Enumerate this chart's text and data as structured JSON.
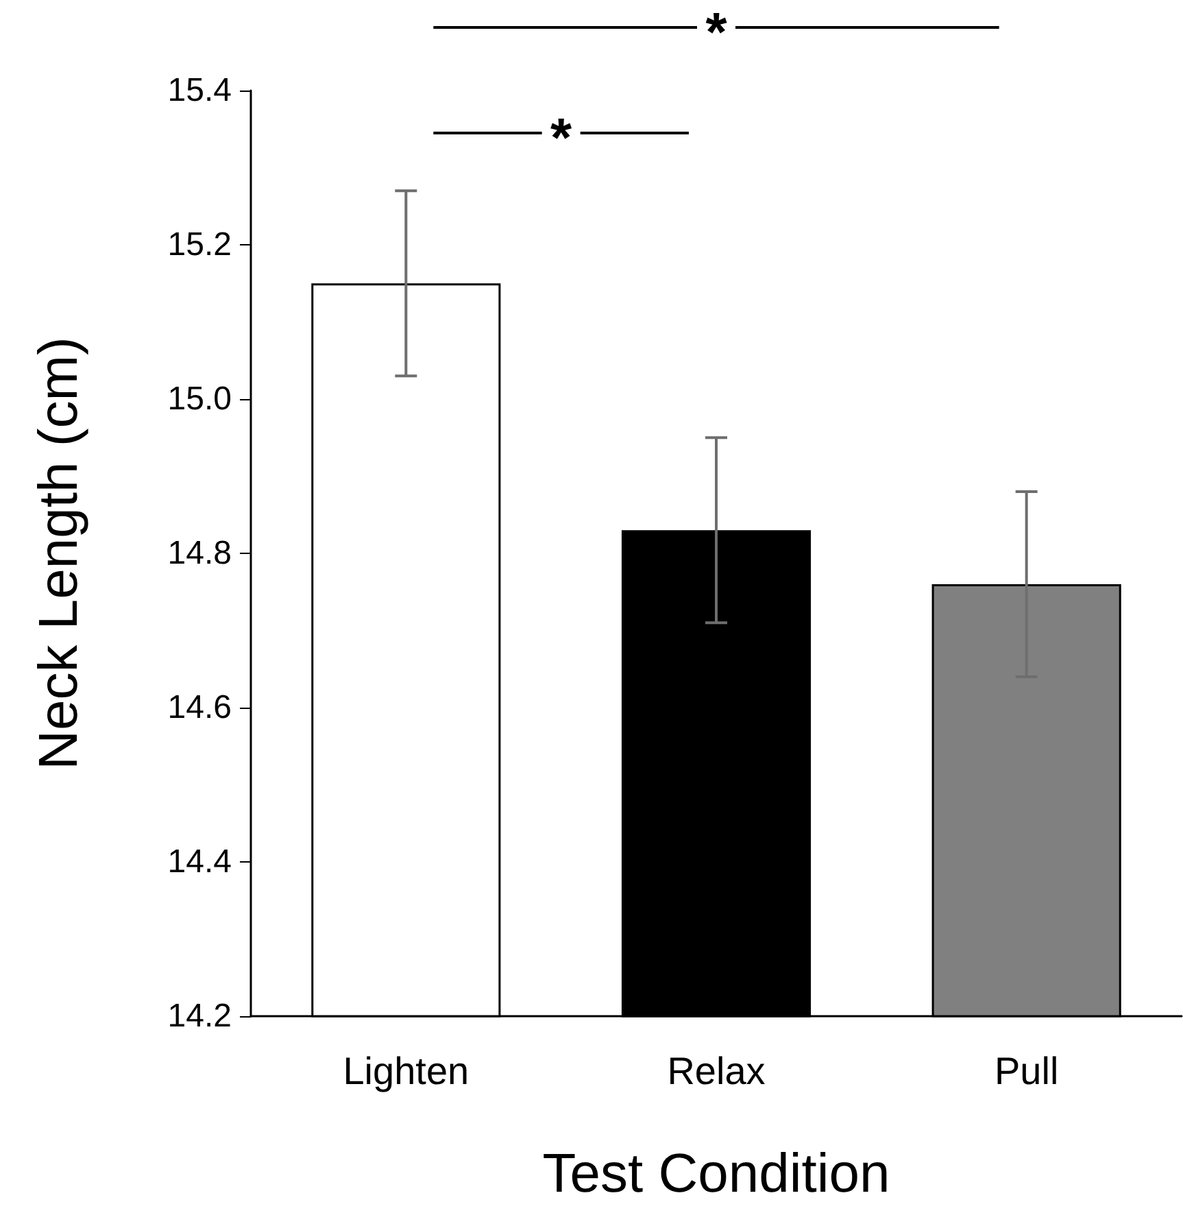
{
  "chart_data": {
    "type": "bar",
    "xlabel": "Test Condition",
    "ylabel": "Neck Length (cm)",
    "categories": [
      "Lighten",
      "Relax",
      "Pull"
    ],
    "values": [
      15.15,
      14.83,
      14.76
    ],
    "errors": [
      0.12,
      0.12,
      0.12
    ],
    "colors": [
      "#ffffff",
      "#000000",
      "#808080"
    ],
    "ylim": [
      14.2,
      15.4
    ],
    "yticks": [
      14.2,
      14.4,
      14.6,
      14.8,
      {
        "value": 15,
        "label": "15.0"
      },
      15.2,
      15.4
    ],
    "grid": false,
    "annotations": [
      "*",
      "*"
    ]
  }
}
